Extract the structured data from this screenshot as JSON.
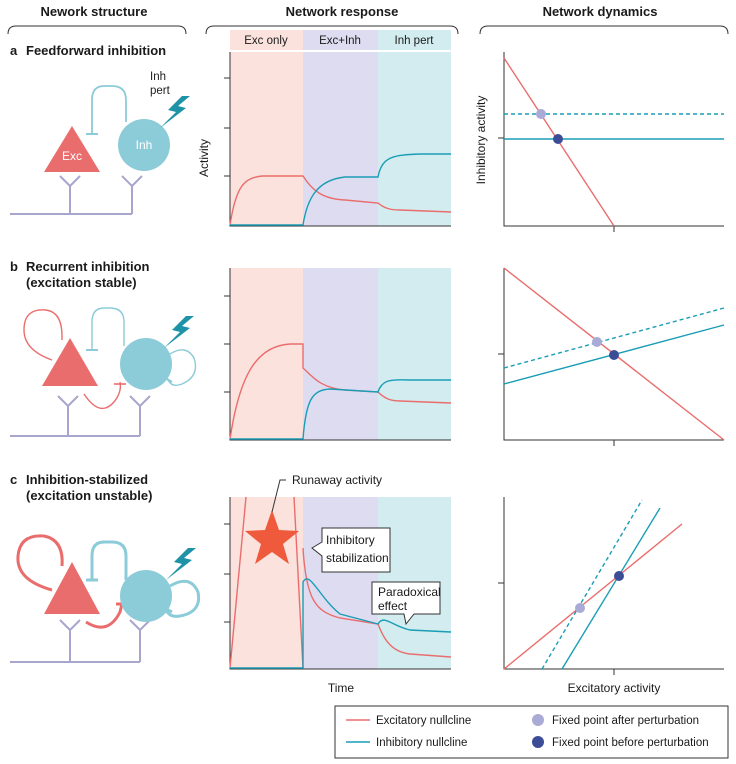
{
  "headers": {
    "structure": "Nework structure",
    "response": "Network response",
    "dynamics": "Network dynamics"
  },
  "phases": [
    "Exc only",
    "Exc+Inh",
    "Inh pert"
  ],
  "rows": [
    {
      "letter": "a",
      "title_lines": [
        "Feedforward inhibition"
      ]
    },
    {
      "letter": "b",
      "title_lines": [
        "Recurrent inhibition",
        "(excitation stable)"
      ]
    },
    {
      "letter": "c",
      "title_lines": [
        "Inhibition-stabilized",
        "(excitation unstable)"
      ]
    }
  ],
  "neuron_labels": {
    "exc": "Exc",
    "inh": "Inh",
    "pert_lines": [
      "Inh",
      "pert"
    ]
  },
  "axes": {
    "activity": "Activity",
    "time": "Time",
    "inhibitory_activity": "Inhibitory activity",
    "excitatory_activity": "Excitatory activity"
  },
  "annotations": {
    "runaway": "Runaway activity",
    "stabilization_lines": [
      "Inhibitory",
      "stabilization"
    ],
    "paradoxical_lines": [
      "Paradoxical",
      "effect"
    ]
  },
  "legend": {
    "exc_nullcline": "Excitatory nullcline",
    "inh_nullcline": "Inhibitory nullcline",
    "fp_after": "Fixed point after perturbation",
    "fp_before": "Fixed point before perturbation"
  },
  "colors": {
    "exc": "#ea6d6d",
    "inh": "#8ccbd8",
    "inh_line": "#1a9db5",
    "dendrite": "#a8a6cc",
    "phase_exc": "#fbe2dc",
    "phase_excinh": "#dedcf0",
    "phase_inh": "#d2ecef",
    "fp_after": "#a9aad6",
    "fp_before": "#3c4d98",
    "bolt": "#1e93a8",
    "star": "#f05a3c"
  }
}
